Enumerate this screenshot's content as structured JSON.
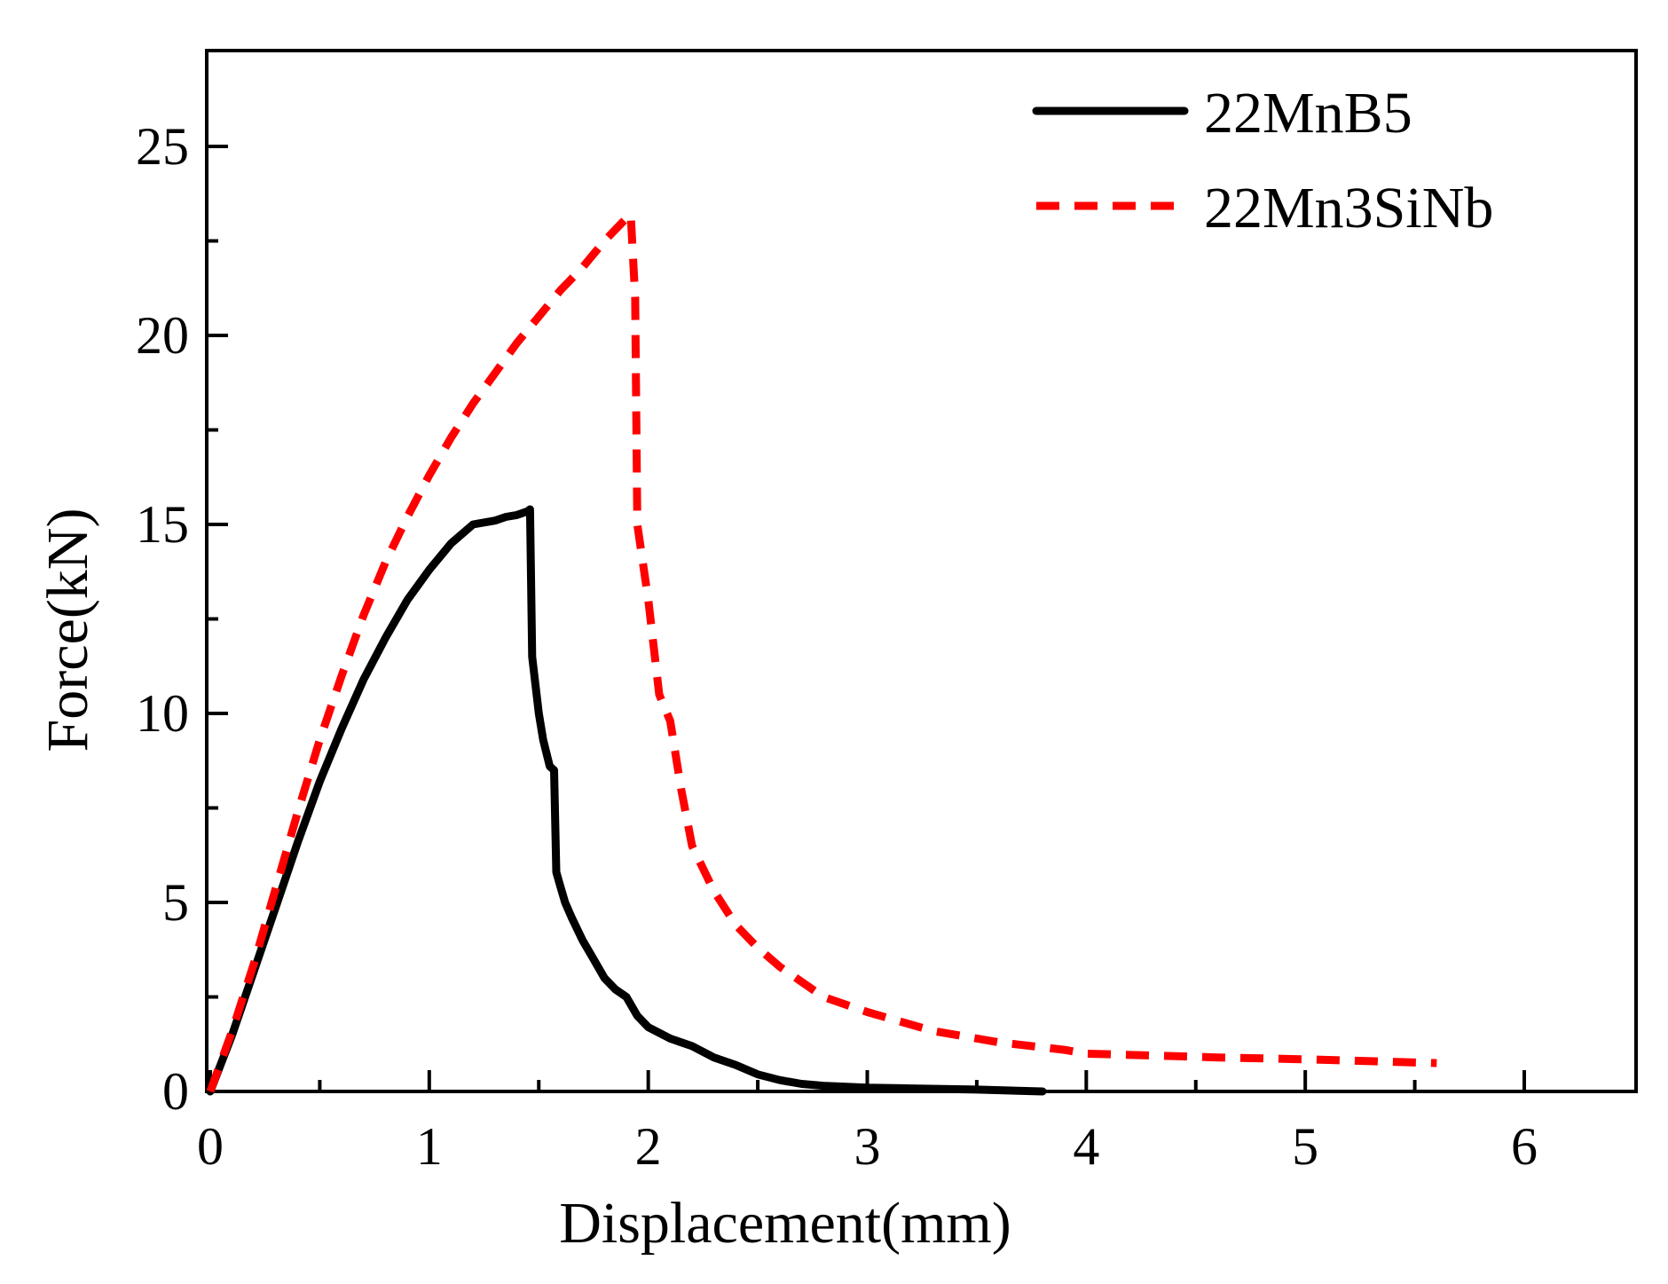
{
  "chart_data": {
    "type": "line",
    "title": "",
    "xlabel": "Displacement(mm)",
    "ylabel": "Force(kN)",
    "xlim": [
      0,
      6.5
    ],
    "ylim": [
      0,
      27.5
    ],
    "x_major_ticks": [
      0,
      1,
      2,
      3,
      4,
      5,
      6
    ],
    "x_tick_labels": [
      "0",
      "1",
      "2",
      "3",
      "4",
      "5",
      "6"
    ],
    "x_minor_ticks": [
      0.5,
      1.5,
      2.5,
      3.5,
      4.5,
      5.5
    ],
    "y_major_ticks": [
      0,
      5,
      10,
      15,
      20,
      25
    ],
    "y_tick_labels": [
      "0",
      "5",
      "10",
      "15",
      "20",
      "25"
    ],
    "y_minor_ticks": [
      2.5,
      7.5,
      12.5,
      17.5,
      22.5
    ],
    "grid": false,
    "legend_position": "top-right",
    "series": [
      {
        "name": "22MnB5",
        "color": "#000000",
        "style": "solid",
        "x": [
          0,
          0.1,
          0.2,
          0.3,
          0.4,
          0.5,
          0.6,
          0.7,
          0.8,
          0.9,
          1.0,
          1.1,
          1.2,
          1.3,
          1.35,
          1.4,
          1.45,
          1.46,
          1.47,
          1.48,
          1.5,
          1.52,
          1.55,
          1.57,
          1.58,
          1.6,
          1.62,
          1.65,
          1.7,
          1.75,
          1.8,
          1.85,
          1.9,
          1.95,
          2.0,
          2.1,
          2.2,
          2.3,
          2.4,
          2.5,
          2.6,
          2.7,
          2.8,
          3.0,
          3.2,
          3.5,
          3.8
        ],
        "y": [
          0,
          1.5,
          3.2,
          4.9,
          6.6,
          8.2,
          9.6,
          10.9,
          12.0,
          13.0,
          13.8,
          14.5,
          15.0,
          15.1,
          15.2,
          15.25,
          15.35,
          15.4,
          11.5,
          11.0,
          10.0,
          9.3,
          8.6,
          8.5,
          5.8,
          5.4,
          5.0,
          4.6,
          4.0,
          3.5,
          3.0,
          2.7,
          2.5,
          2.0,
          1.7,
          1.4,
          1.2,
          0.9,
          0.7,
          0.45,
          0.3,
          0.2,
          0.15,
          0.1,
          0.08,
          0.05,
          0.0
        ]
      },
      {
        "name": "22Mn3SiNb",
        "color": "#ff0000",
        "style": "dashed",
        "x": [
          0,
          0.1,
          0.2,
          0.3,
          0.4,
          0.5,
          0.6,
          0.7,
          0.8,
          0.9,
          1.0,
          1.1,
          1.2,
          1.3,
          1.4,
          1.5,
          1.6,
          1.7,
          1.8,
          1.85,
          1.9,
          1.92,
          1.94,
          1.95,
          2.0,
          2.05,
          2.1,
          2.15,
          2.2,
          2.3,
          2.4,
          2.5,
          2.6,
          2.8,
          3.0,
          3.3,
          3.6,
          3.9,
          4.0,
          4.3,
          4.6,
          5.0,
          5.3,
          5.6
        ],
        "y": [
          0,
          1.6,
          3.4,
          5.4,
          7.4,
          9.3,
          11.0,
          12.6,
          14.0,
          15.2,
          16.3,
          17.3,
          18.2,
          19.0,
          19.8,
          20.5,
          21.2,
          21.8,
          22.5,
          22.8,
          23.1,
          23.2,
          21.0,
          15.0,
          13.0,
          10.5,
          9.8,
          8.0,
          6.5,
          5.3,
          4.4,
          3.8,
          3.3,
          2.5,
          2.1,
          1.6,
          1.3,
          1.1,
          1.0,
          0.95,
          0.9,
          0.85,
          0.8,
          0.75
        ]
      }
    ]
  }
}
